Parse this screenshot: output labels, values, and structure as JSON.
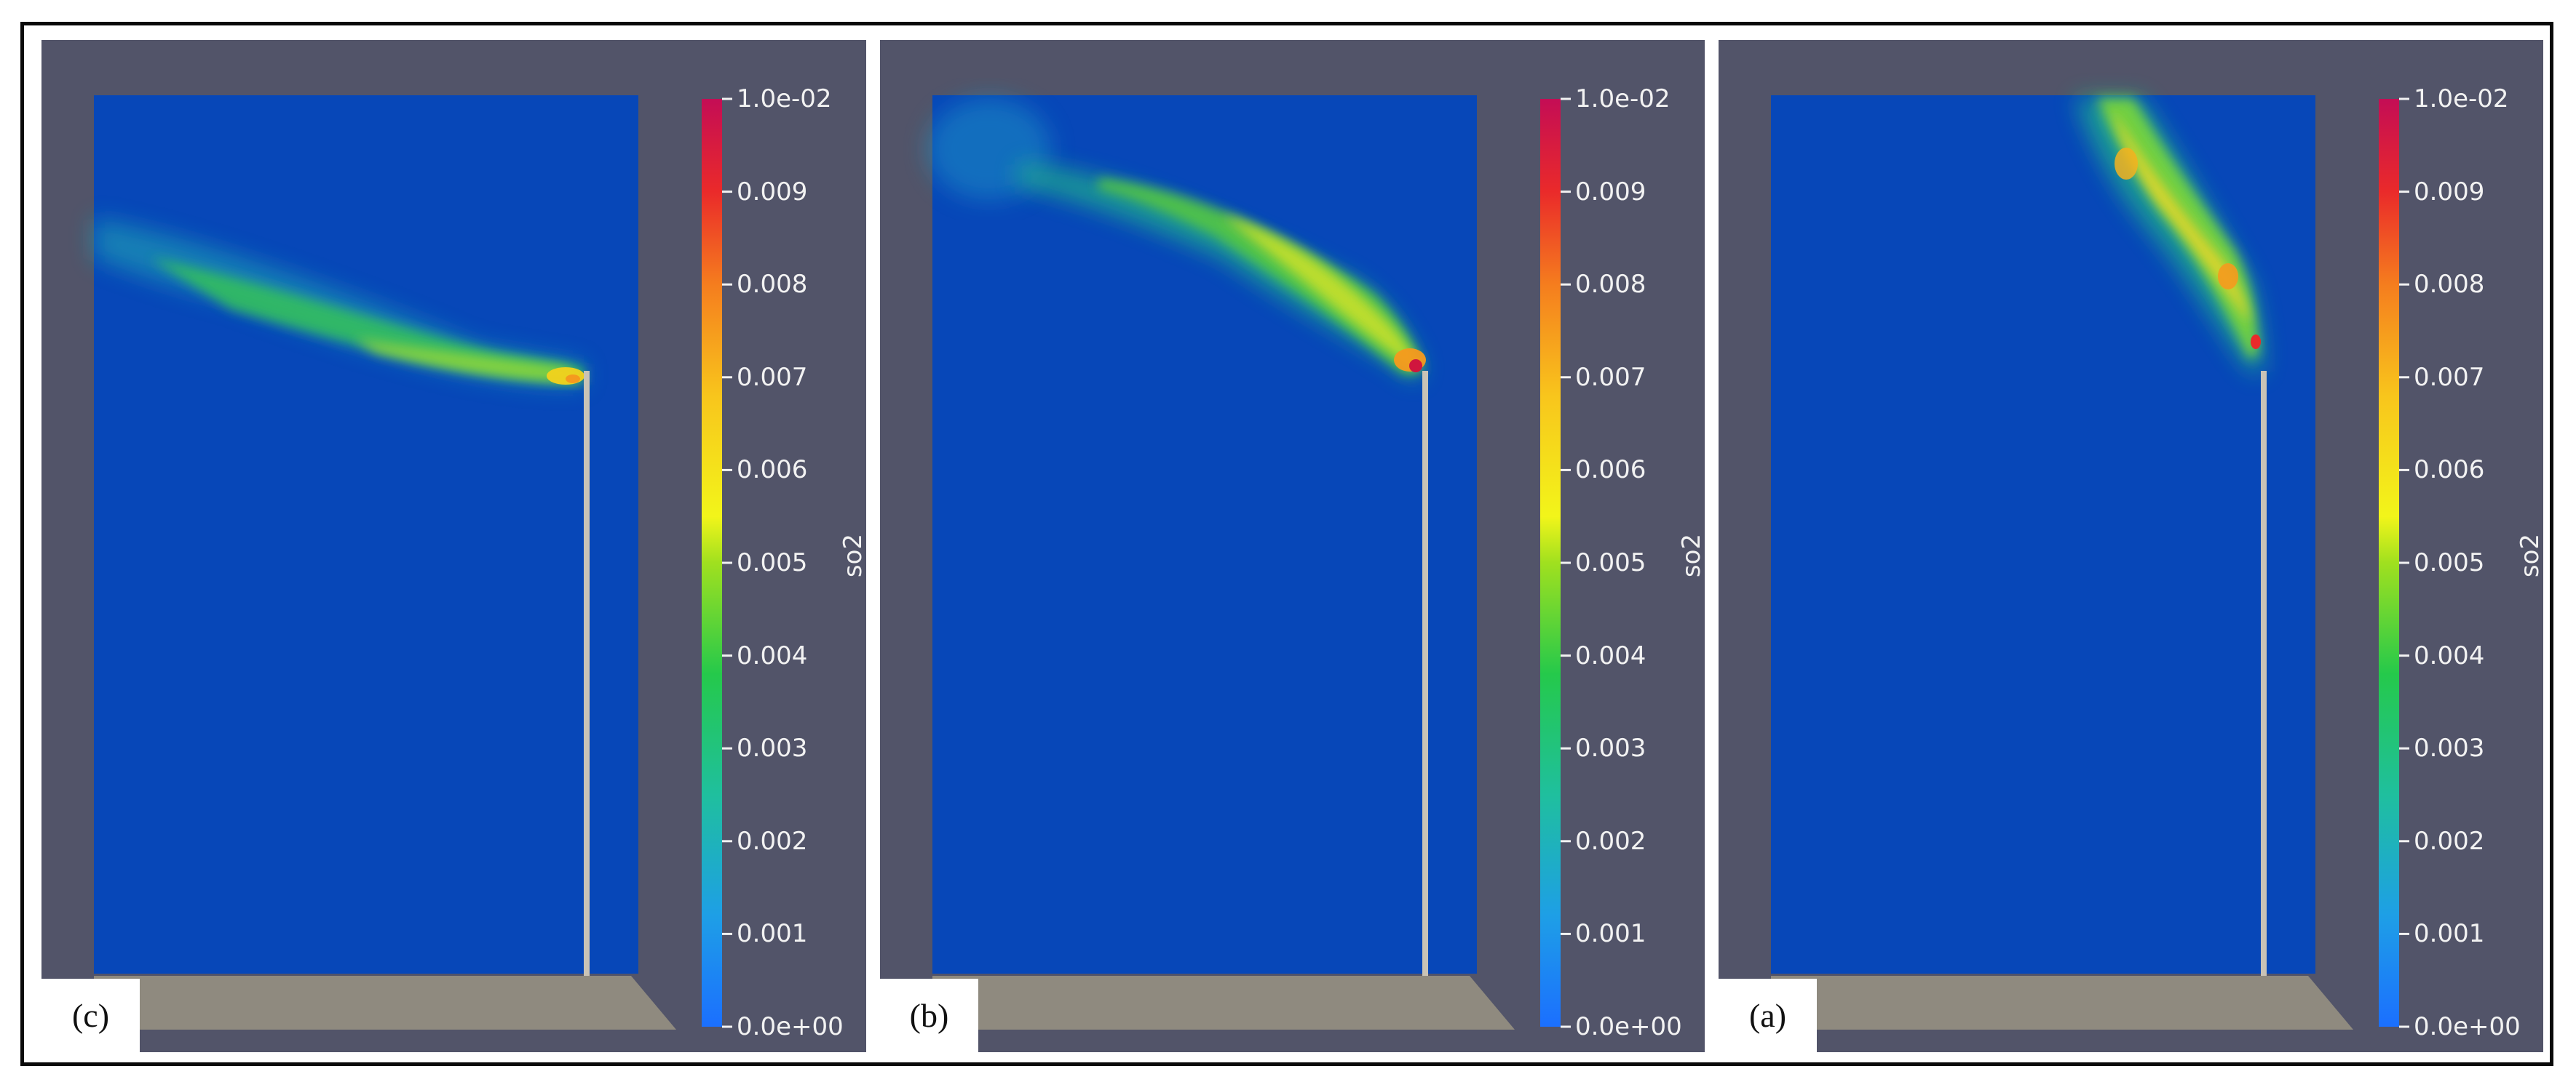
{
  "panels": [
    {
      "id": "c",
      "label": "(c)",
      "colorbar_title": "so2",
      "ticks": [
        "1.0e-02",
        "0.009",
        "0.008",
        "0.007",
        "0.006",
        "0.005",
        "0.004",
        "0.003",
        "0.002",
        "0.001",
        "0.0e+00"
      ]
    },
    {
      "id": "b",
      "label": "(b)",
      "colorbar_title": "so2",
      "ticks": [
        "1.0e-02",
        "0.009",
        "0.008",
        "0.007",
        "0.006",
        "0.005",
        "0.004",
        "0.003",
        "0.002",
        "0.001",
        "0.0e+00"
      ]
    },
    {
      "id": "a",
      "label": "(a)",
      "colorbar_title": "so2",
      "ticks": [
        "1.0e-02",
        "0.009",
        "0.008",
        "0.007",
        "0.006",
        "0.005",
        "0.004",
        "0.003",
        "0.002",
        "0.001",
        "0.0e+00"
      ]
    }
  ],
  "colors": {
    "background": "#525469",
    "domain": "#0747b8",
    "ground": "#8f8a7f",
    "stack": "#c9c3b6",
    "colormap": [
      "#1b6fff",
      "#1e9fe6",
      "#1fbf9e",
      "#25c94b",
      "#7fdc21",
      "#f2f51a",
      "#f8c51c",
      "#f57d1e",
      "#ea2a2a",
      "#c40d55"
    ]
  }
}
